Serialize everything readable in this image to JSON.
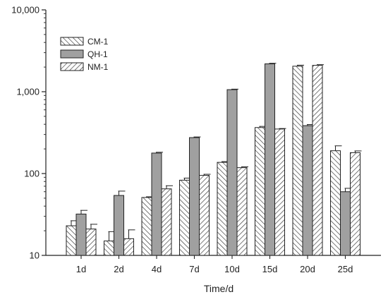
{
  "chart_data": {
    "type": "bar",
    "title": "",
    "xlabel": "Time/d",
    "ylabel": "",
    "yscale": "log",
    "ylim": [
      10,
      10000
    ],
    "y_ticks": [
      "10",
      "100",
      "1,000",
      "10,000"
    ],
    "categories": [
      "1d",
      "2d",
      "4d",
      "7d",
      "10d",
      "15d",
      "20d",
      "25d"
    ],
    "series": [
      {
        "name": "CM-1",
        "pattern": "hatch-backslash",
        "fill": "#ffffff",
        "values": [
          23,
          15,
          51,
          83,
          137,
          365,
          2050,
          190
        ],
        "errors": [
          3.5,
          4.5,
          1,
          5,
          3,
          12,
          60,
          28
        ]
      },
      {
        "name": "QH-1",
        "pattern": "solid",
        "fill": "#a0a0a0",
        "values": [
          32,
          54,
          178,
          275,
          1060,
          2190,
          385,
          60
        ],
        "errors": [
          3.5,
          7,
          4,
          5,
          15,
          35,
          12,
          6
        ]
      },
      {
        "name": "NM-1",
        "pattern": "hatch-slash",
        "fill": "#ffffff",
        "values": [
          21,
          16,
          65,
          95,
          118,
          350,
          2100,
          180
        ],
        "errors": [
          3,
          4.5,
          6,
          3,
          3,
          5,
          40,
          9
        ]
      }
    ],
    "legend_position": "top-left",
    "grid": false
  }
}
